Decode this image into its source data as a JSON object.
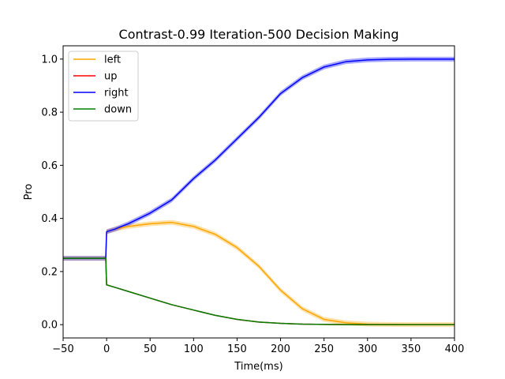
{
  "chart_data": {
    "type": "line",
    "title": "Contrast-0.99 Iteration-500 Decision Making",
    "xlabel": "Time(ms)",
    "ylabel": "Pro",
    "xlim": [
      -50,
      400
    ],
    "ylim": [
      -0.05,
      1.05
    ],
    "xticks": [
      -50,
      0,
      50,
      100,
      150,
      200,
      250,
      300,
      350,
      400
    ],
    "xtick_labels": [
      "−50",
      "0",
      "50",
      "100",
      "150",
      "200",
      "250",
      "300",
      "350",
      "400"
    ],
    "yticks": [
      0.0,
      0.2,
      0.4,
      0.6,
      0.8,
      1.0
    ],
    "ytick_labels": [
      "0.0",
      "0.2",
      "0.4",
      "0.6",
      "0.8",
      "1.0"
    ],
    "grid": false,
    "legend_placement": "top-left",
    "x": [
      -50,
      -1,
      0,
      10,
      25,
      50,
      75,
      100,
      125,
      150,
      175,
      200,
      225,
      250,
      275,
      300,
      325,
      350,
      375,
      400
    ],
    "series": [
      {
        "name": "left",
        "color": "#ffa500",
        "band": true,
        "values": [
          0.25,
          0.25,
          0.35,
          0.36,
          0.37,
          0.38,
          0.385,
          0.37,
          0.34,
          0.29,
          0.22,
          0.13,
          0.06,
          0.02,
          0.007,
          0.002,
          0.001,
          0.0,
          0.0,
          0.0
        ]
      },
      {
        "name": "up",
        "color": "#ff0000",
        "band": false,
        "values": [
          0.25,
          0.25,
          0.15,
          0.14,
          0.125,
          0.1,
          0.075,
          0.055,
          0.035,
          0.02,
          0.01,
          0.005,
          0.002,
          0.001,
          0.0,
          0.0,
          0.0,
          0.0,
          0.0,
          0.0
        ]
      },
      {
        "name": "right",
        "color": "#0000ff",
        "band": true,
        "values": [
          0.25,
          0.25,
          0.35,
          0.36,
          0.38,
          0.42,
          0.47,
          0.55,
          0.62,
          0.7,
          0.78,
          0.87,
          0.93,
          0.97,
          0.99,
          0.997,
          0.999,
          1.0,
          1.0,
          1.0
        ]
      },
      {
        "name": "down",
        "color": "#008000",
        "band": false,
        "values": [
          0.25,
          0.25,
          0.15,
          0.14,
          0.125,
          0.1,
          0.075,
          0.055,
          0.035,
          0.02,
          0.01,
          0.005,
          0.002,
          0.001,
          0.0,
          0.0,
          0.0,
          0.0,
          0.0,
          0.0
        ]
      }
    ]
  }
}
